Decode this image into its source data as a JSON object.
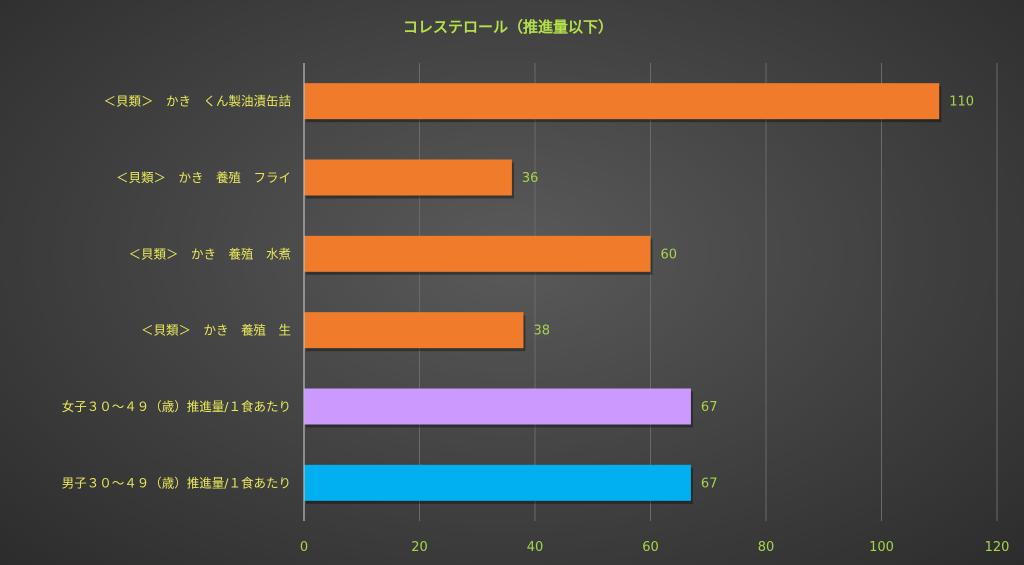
{
  "chart_data": {
    "type": "bar",
    "orientation": "horizontal",
    "title": "コレステロール（推進量以下）",
    "categories": [
      "＜貝類＞　かき　くん製油漬缶詰",
      "＜貝類＞　かき　養殖　フライ",
      "＜貝類＞　かき　養殖　水煮",
      "＜貝類＞　かき　養殖　生",
      "女子３０～４９（歳）推進量/１食あたり",
      "男子３０～４９（歳）推進量/１食あたり"
    ],
    "values": [
      110,
      36,
      60,
      38,
      67,
      67
    ],
    "bar_colors": [
      "#f07b2a",
      "#f07b2a",
      "#f07b2a",
      "#f07b2a",
      "#cc99ff",
      "#00b0f0"
    ],
    "xlim": [
      0,
      120
    ],
    "xticks": [
      0,
      20,
      40,
      60,
      80,
      100,
      120
    ],
    "grid": true,
    "legend": "none",
    "colors": {
      "title": "#b4e04a",
      "category_label": "#e8e85a",
      "tick_label": "#a6d44a",
      "gridline": "#6a6a6a",
      "axis": "#bdbdbd"
    }
  }
}
